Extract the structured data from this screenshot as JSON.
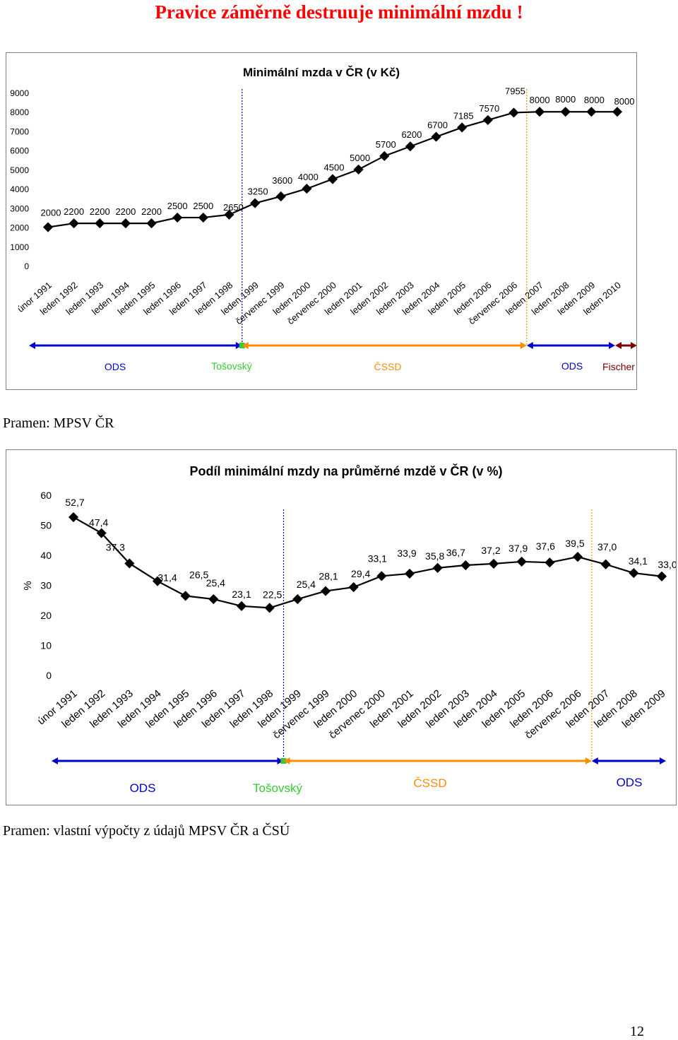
{
  "page": {
    "title": "Pravice záměrně destruuje  minimální mzdu !",
    "source1": "Pramen: MPSV ČR",
    "source2": "Pramen: vlastní výpočty z údajů MPSV ČR a ČSÚ",
    "page_number": "12"
  },
  "chart_data": [
    {
      "type": "line",
      "title": "Minimální mzda v ČR (v Kč)",
      "xlabel": "",
      "ylabel": "",
      "ylim": [
        0,
        9000
      ],
      "yticks": [
        0,
        1000,
        2000,
        3000,
        4000,
        5000,
        6000,
        7000,
        8000,
        9000
      ],
      "grid": false,
      "categories": [
        "únor 1991",
        "leden 1992",
        "leden 1993",
        "leden 1994",
        "leden 1995",
        "leden 1996",
        "leden 1997",
        "leden 1998",
        "leden 1999",
        "červenec 1999",
        "leden 2000",
        "červenec 2000",
        "leden 2001",
        "leden 2002",
        "leden 2003",
        "leden 2004",
        "leden 2005",
        "leden 2006",
        "červenec 2006",
        "leden 2007",
        "leden 2008",
        "leden 2009",
        "leden 2010"
      ],
      "series": [
        {
          "values": [
            2000,
            2200,
            2200,
            2200,
            2200,
            2500,
            2500,
            2650,
            3250,
            3600,
            4000,
            4500,
            5000,
            5700,
            6200,
            6700,
            7185,
            7570,
            7955,
            8000,
            8000,
            8000,
            8000
          ]
        }
      ],
      "data_labels": [
        "2000",
        "2200",
        "2200",
        "2200",
        "2200",
        "2500",
        "2500",
        "2650",
        "3250",
        "3600",
        "4000",
        "4500",
        "5000",
        "5700",
        "6200",
        "6700",
        "7185",
        "7570",
        "7955",
        "8000",
        "8000",
        "8000",
        "8000"
      ],
      "markers": [
        {
          "after_category": "leden 1998",
          "color": "#0000cc"
        },
        {
          "after_category": "červenec 2006",
          "color": "#ff8c00"
        }
      ],
      "periods": [
        {
          "label": "ODS",
          "color": "#0000cc",
          "from_category": "únor 1991",
          "to_category": "leden 1998"
        },
        {
          "label": "Tošovský",
          "color": "#33cc33",
          "from_category": "leden 1998",
          "to_category": "leden 1998"
        },
        {
          "label": "ČSSD",
          "color": "#ff8c00",
          "from_category": "leden 1998",
          "to_category": "červenec 2006"
        },
        {
          "label": "ODS",
          "color": "#0000cc",
          "from_category": "červenec 2006",
          "to_category": "leden 2010"
        },
        {
          "label": "Fischer",
          "color": "#800000",
          "from_category": "leden 2010",
          "to_category": "leden 2010"
        }
      ]
    },
    {
      "type": "line",
      "title": "Podíl minimální mzdy na průměrné mzdě v ČR (v %)",
      "xlabel": "",
      "ylabel": "%",
      "ylim": [
        0,
        60
      ],
      "yticks": [
        0,
        10,
        20,
        30,
        40,
        50,
        60
      ],
      "grid": false,
      "categories": [
        "únor 1991",
        "leden 1992",
        "leden 1993",
        "leden 1994",
        "leden 1995",
        "leden 1996",
        "leden 1997",
        "leden 1998",
        "leden 1999",
        "červenec 1999",
        "leden 2000",
        "červenec 2000",
        "leden 2001",
        "leden 2002",
        "leden 2003",
        "leden 2004",
        "leden 2005",
        "leden 2006",
        "červenec 2006",
        "leden 2007",
        "leden 2008",
        "leden 2009"
      ],
      "series": [
        {
          "values": [
            52.7,
            47.4,
            37.3,
            31.4,
            26.5,
            25.4,
            23.1,
            22.5,
            25.4,
            28.1,
            29.4,
            33.1,
            33.9,
            35.8,
            36.7,
            37.2,
            37.9,
            37.6,
            39.5,
            37.0,
            34.1,
            33.0
          ]
        }
      ],
      "data_labels": [
        "52,7",
        "47,4",
        "37,3",
        "31,4",
        "26,5",
        "25,4",
        "23,1",
        "22,5",
        "25,4",
        "28,1",
        "29,4",
        "33,1",
        "33,9",
        "35,8",
        "36,7",
        "37,2",
        "37,9",
        "37,6",
        "39,5",
        "37,0",
        "34,1",
        "33,0"
      ],
      "markers": [
        {
          "after_category": "leden 1998",
          "color": "#0000cc"
        },
        {
          "after_category": "červenec 2006",
          "color": "#ff8c00"
        }
      ],
      "periods": [
        {
          "label": "ODS",
          "color": "#0000cc",
          "from_category": "únor 1991",
          "to_category": "leden 1998"
        },
        {
          "label": "Tošovský",
          "color": "#33cc33",
          "from_category": "leden 1998",
          "to_category": "leden 1998"
        },
        {
          "label": "ČSSD",
          "color": "#ff8c00",
          "from_category": "leden 1998",
          "to_category": "červenec 2006"
        },
        {
          "label": "ODS",
          "color": "#0000cc",
          "from_category": "červenec 2006",
          "to_category": "leden 2009"
        }
      ]
    }
  ]
}
